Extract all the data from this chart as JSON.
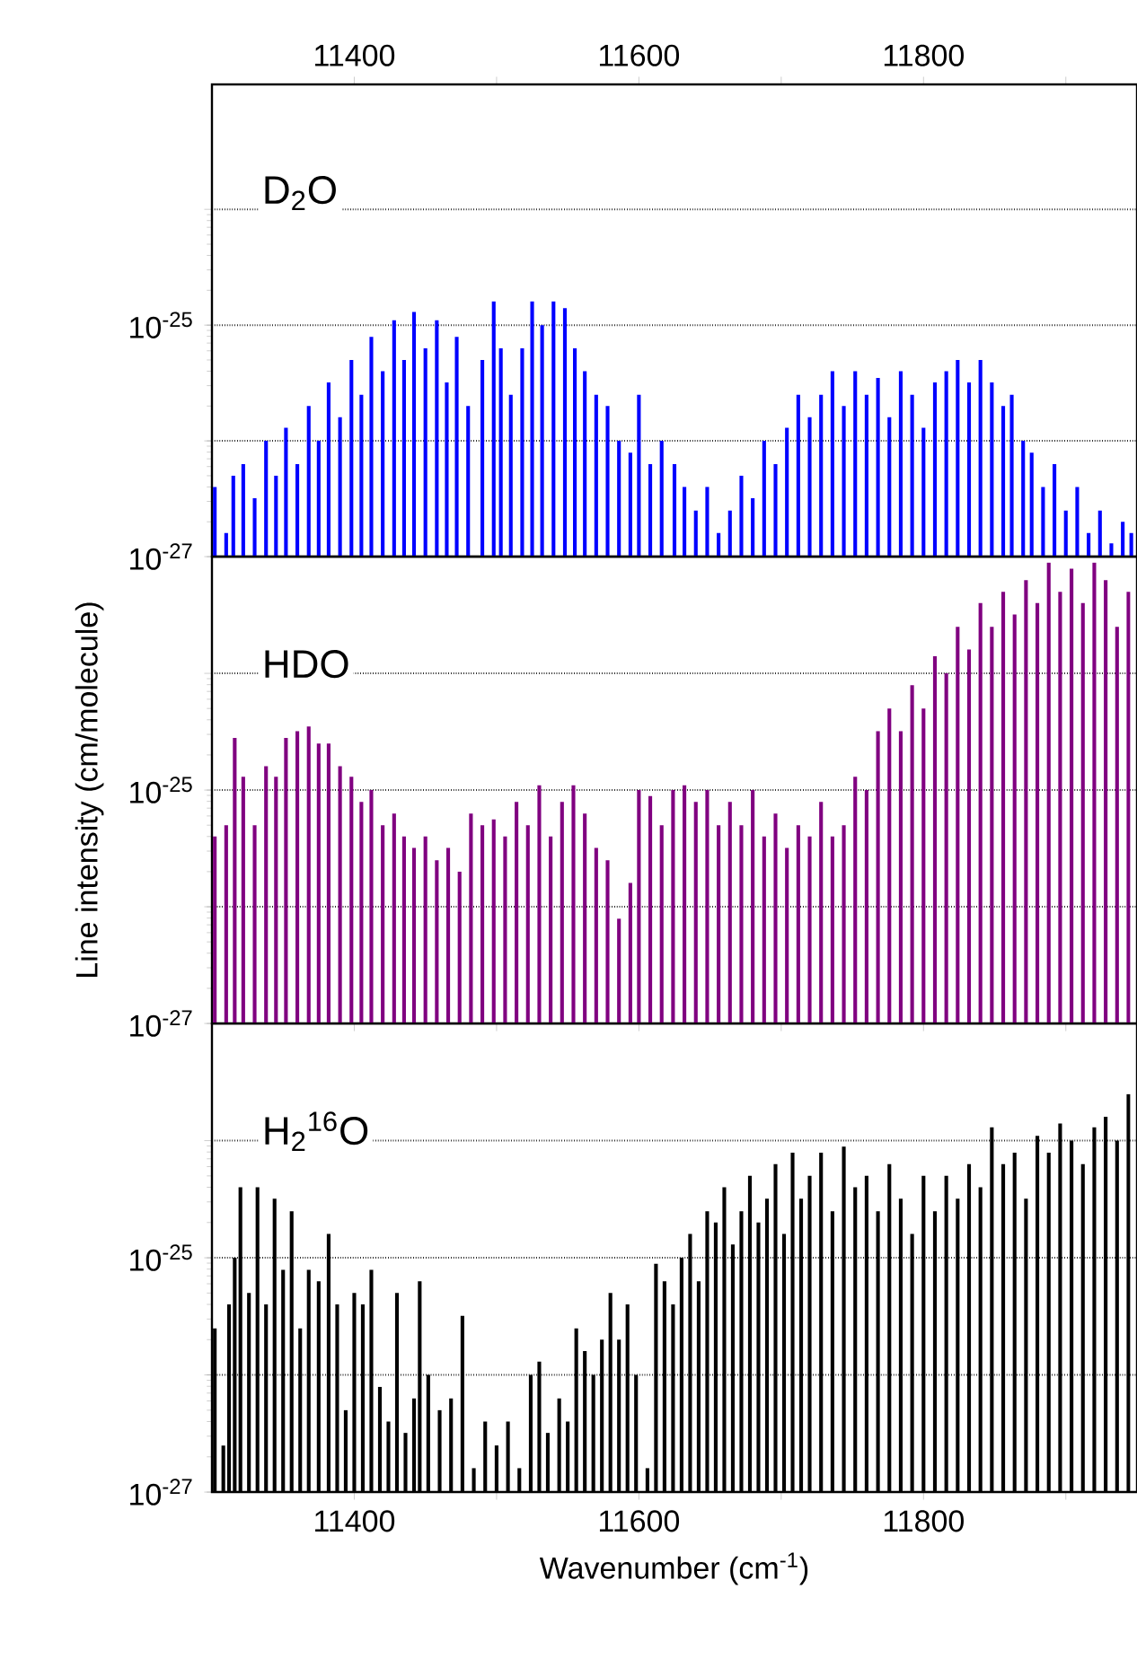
{
  "chart_data": [
    {
      "type": "bar",
      "annotations": [
        "D$_{2}$O"
      ],
      "xlim": [
        11300,
        11950
      ],
      "xticks": [
        11400,
        {
          "value": 11500,
          "label": null
        },
        11600,
        {
          "value": 11700,
          "label": null
        },
        11800,
        {
          "value": 11900,
          "label": null
        }
      ],
      "ylim": [
        1e-27,
        1.2e-23
      ],
      "yticks": [
        {
          "value": 1e-27,
          "label": "10$^{-27}$"
        },
        {
          "value": 1e-26,
          "label": null
        },
        {
          "value": 1e-25,
          "label": "10$^{-25}$"
        },
        {
          "value": 1e-24,
          "label": null
        }
      ],
      "log": "y",
      "grid": "y",
      "x": [
        11302,
        11310,
        11315,
        11322,
        11330,
        11338,
        11345,
        11352,
        11360,
        11368,
        11375,
        11382,
        11390,
        11398,
        11405,
        11412,
        11420,
        11428,
        11435,
        11442,
        11450,
        11458,
        11465,
        11472,
        11480,
        11490,
        11498,
        11503,
        11510,
        11518,
        11525,
        11532,
        11540,
        11548,
        11555,
        11562,
        11570,
        11578,
        11586,
        11594,
        11600,
        11608,
        11616,
        11625,
        11632,
        11640,
        11648,
        11656,
        11664,
        11672,
        11680,
        11688,
        11696,
        11704,
        11712,
        11720,
        11728,
        11736,
        11744,
        11752,
        11760,
        11768,
        11776,
        11784,
        11792,
        11800,
        11808,
        11816,
        11824,
        11832,
        11840,
        11848,
        11856,
        11862,
        11870,
        11876,
        11884,
        11892,
        11900,
        11908,
        11916,
        11924,
        11932,
        11940,
        11946
      ],
      "series": [
        {
          "color": "#0000ff",
          "values": [
            4e-27,
            1.6e-27,
            5e-27,
            6.3e-27,
            3.2e-27,
            1e-26,
            5e-27,
            1.3e-26,
            6.3e-27,
            2e-26,
            1e-26,
            3.2e-26,
            1.6e-26,
            5e-26,
            2.5e-26,
            7.9e-26,
            4e-26,
            1.1e-25,
            5e-26,
            1.3e-25,
            6.3e-26,
            1.1e-25,
            3.2e-26,
            7.9e-26,
            2e-26,
            5e-26,
            1.6e-25,
            6.3e-26,
            2.5e-26,
            6.3e-26,
            1.6e-25,
            1e-25,
            1.6e-25,
            1.4e-25,
            6.3e-26,
            4e-26,
            2.5e-26,
            2e-26,
            1e-26,
            7.9e-27,
            2.5e-26,
            6.3e-27,
            1e-26,
            6.3e-27,
            4e-27,
            2.5e-27,
            4e-27,
            1.6e-27,
            2.5e-27,
            5e-27,
            3.2e-27,
            1e-26,
            6.3e-27,
            1.3e-26,
            2.5e-26,
            1.6e-26,
            2.5e-26,
            4e-26,
            2e-26,
            4e-26,
            2.5e-26,
            3.5e-26,
            1.6e-26,
            4e-26,
            2.5e-26,
            1.3e-26,
            3.2e-26,
            4e-26,
            5e-26,
            3.2e-26,
            5e-26,
            3.2e-26,
            2e-26,
            2.5e-26,
            1e-26,
            7.9e-27,
            4e-27,
            6.3e-27,
            2.5e-27,
            4e-27,
            1.6e-27,
            2.5e-27,
            1.3e-27,
            2e-27,
            1.6e-27
          ]
        }
      ]
    },
    {
      "type": "bar",
      "annotations": [
        "HDO"
      ],
      "ylabel": "Line intensity (cm/molecule)",
      "tick_labels": "y",
      "xlim": [
        11300,
        11950
      ],
      "xticks": [
        11400,
        {
          "value": 11500,
          "label": null
        },
        11600,
        {
          "value": 11700,
          "label": null
        },
        11800,
        {
          "value": 11900,
          "label": null
        }
      ],
      "ylim": [
        1e-27,
        1e-23
      ],
      "yticks": [
        {
          "value": 1e-27,
          "label": "10$^{-27}$"
        },
        {
          "value": 1e-26,
          "label": null
        },
        {
          "value": 1e-25,
          "label": "10$^{-25}$"
        },
        {
          "value": 1e-24,
          "label": null
        }
      ],
      "log": "y",
      "grid": "y",
      "x": [
        11302,
        11310,
        11316,
        11322,
        11330,
        11338,
        11345,
        11352,
        11360,
        11368,
        11375,
        11382,
        11390,
        11398,
        11405,
        11412,
        11420,
        11428,
        11435,
        11442,
        11450,
        11458,
        11466,
        11474,
        11482,
        11490,
        11498,
        11506,
        11514,
        11522,
        11530,
        11538,
        11546,
        11554,
        11562,
        11570,
        11578,
        11586,
        11594,
        11600,
        11608,
        11616,
        11624,
        11632,
        11640,
        11648,
        11656,
        11664,
        11672,
        11680,
        11688,
        11696,
        11704,
        11712,
        11720,
        11728,
        11736,
        11744,
        11752,
        11760,
        11768,
        11776,
        11784,
        11792,
        11800,
        11808,
        11816,
        11824,
        11832,
        11840,
        11848,
        11856,
        11864,
        11872,
        11880,
        11888,
        11896,
        11904,
        11912,
        11920,
        11928,
        11936,
        11944
      ],
      "series": [
        {
          "color": "#800080",
          "values": [
            4e-26,
            5e-26,
            2.8e-25,
            1.3e-25,
            5e-26,
            1.6e-25,
            1.3e-25,
            2.8e-25,
            3.2e-25,
            3.5e-25,
            2.5e-25,
            2.5e-25,
            1.6e-25,
            1.3e-25,
            7.9e-26,
            1e-25,
            5e-26,
            6.3e-26,
            4e-26,
            3.2e-26,
            4e-26,
            2.5e-26,
            3.2e-26,
            2e-26,
            6.3e-26,
            5e-26,
            5.6e-26,
            4e-26,
            7.9e-26,
            5e-26,
            1.1e-25,
            4e-26,
            7.9e-26,
            1.1e-25,
            6.3e-26,
            3.2e-26,
            2.5e-26,
            7.9e-27,
            1.6e-26,
            1e-25,
            8.9e-26,
            5e-26,
            1e-25,
            1.1e-25,
            7.9e-26,
            1e-25,
            5e-26,
            7.9e-26,
            5e-26,
            1e-25,
            4e-26,
            6.3e-26,
            3.2e-26,
            5e-26,
            4e-26,
            7.9e-26,
            4e-26,
            5e-26,
            1.3e-25,
            1e-25,
            3.2e-25,
            5e-25,
            3.2e-25,
            7.9e-25,
            5e-25,
            1.4e-24,
            1e-24,
            2.5e-24,
            1.6e-24,
            4e-24,
            2.5e-24,
            5e-24,
            3.2e-24,
            6.3e-24,
            4e-24,
            8.9e-24,
            5e-24,
            7.9e-24,
            4e-24,
            8.9e-24,
            6.3e-24,
            2.5e-24,
            5e-24
          ]
        }
      ]
    },
    {
      "type": "bar",
      "annotations": [
        "H$_{2}$$^{16}$O"
      ],
      "xlabel": "Wavenumber (cm$^{-1}$)",
      "xlim": [
        11300,
        11950
      ],
      "xticks": [
        11400,
        {
          "value": 11500,
          "label": null
        },
        11600,
        {
          "value": 11700,
          "label": null
        },
        11800,
        {
          "value": 11900,
          "label": null
        }
      ],
      "ylim": [
        1e-27,
        1e-23
      ],
      "yticks": [
        {
          "value": 1e-27,
          "label": "10$^{-27}$"
        },
        {
          "value": 1e-26,
          "label": null
        },
        {
          "value": 1e-25,
          "label": "10$^{-25}$"
        },
        {
          "value": 1e-24,
          "label": null
        }
      ],
      "log": "y",
      "grid": "y",
      "x": [
        11302,
        11308,
        11312,
        11316,
        11320,
        11326,
        11332,
        11338,
        11344,
        11350,
        11356,
        11362,
        11368,
        11375,
        11382,
        11388,
        11394,
        11400,
        11406,
        11412,
        11418,
        11424,
        11430,
        11436,
        11442,
        11446,
        11452,
        11460,
        11468,
        11476,
        11484,
        11492,
        11500,
        11508,
        11516,
        11524,
        11530,
        11536,
        11544,
        11550,
        11556,
        11562,
        11568,
        11574,
        11580,
        11586,
        11592,
        11598,
        11606,
        11612,
        11618,
        11624,
        11630,
        11636,
        11642,
        11648,
        11654,
        11660,
        11666,
        11672,
        11678,
        11684,
        11690,
        11696,
        11702,
        11708,
        11714,
        11720,
        11728,
        11736,
        11744,
        11752,
        11760,
        11768,
        11776,
        11784,
        11792,
        11800,
        11808,
        11816,
        11824,
        11832,
        11840,
        11848,
        11856,
        11864,
        11872,
        11880,
        11888,
        11896,
        11904,
        11912,
        11920,
        11928,
        11936,
        11944
      ],
      "series": [
        {
          "color": "#000000",
          "values": [
            2.5e-26,
            2.5e-27,
            4e-26,
            1e-25,
            4e-25,
            5e-26,
            4e-25,
            4e-26,
            3.2e-25,
            7.9e-26,
            2.5e-25,
            2.5e-26,
            7.9e-26,
            6.3e-26,
            1.6e-25,
            4e-26,
            5e-27,
            5e-26,
            4e-26,
            7.9e-26,
            7.9e-27,
            4e-27,
            5e-26,
            3.2e-27,
            6.3e-27,
            6.3e-26,
            1e-26,
            5e-27,
            6.3e-27,
            3.2e-26,
            1.6e-27,
            4e-27,
            2.5e-27,
            4e-27,
            1.6e-27,
            1e-26,
            1.3e-26,
            3.2e-27,
            6.3e-27,
            4e-27,
            2.5e-26,
            1.6e-26,
            1e-26,
            2e-26,
            5e-26,
            2e-26,
            4e-26,
            1e-26,
            1.6e-27,
            8.9e-26,
            6.3e-26,
            4e-26,
            1e-25,
            1.6e-25,
            6.3e-26,
            2.5e-25,
            2e-25,
            4e-25,
            1.3e-25,
            2.5e-25,
            5e-25,
            2e-25,
            3.2e-25,
            6.3e-25,
            1.6e-25,
            7.9e-25,
            3.2e-25,
            5e-25,
            7.9e-25,
            2.5e-25,
            8.9e-25,
            4e-25,
            5e-25,
            2.5e-25,
            6.3e-25,
            3.2e-25,
            1.6e-25,
            5e-25,
            2.5e-25,
            5e-25,
            3.2e-25,
            6.3e-25,
            4e-25,
            1.3e-24,
            6.3e-25,
            7.9e-25,
            3.2e-25,
            1.1e-24,
            7.9e-25,
            1.4e-24,
            1e-24,
            6.3e-25,
            1.3e-24,
            1.6e-24,
            1e-24,
            2.5e-24
          ]
        }
      ]
    }
  ]
}
